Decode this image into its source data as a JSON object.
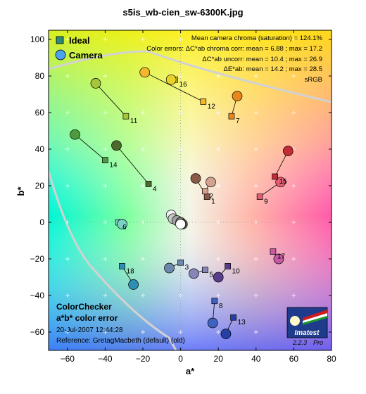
{
  "chart_data": {
    "type": "scatter",
    "title": "s5is_wb-cien_sw-6300K.jpg",
    "xlabel": "a*",
    "ylabel": "b*",
    "xlim": [
      -70,
      80
    ],
    "ylim": [
      -70,
      105
    ],
    "x_ticks": [
      -60,
      -40,
      -20,
      0,
      20,
      40,
      60,
      80
    ],
    "y_ticks": [
      -60,
      -40,
      -20,
      0,
      20,
      40,
      60,
      80,
      100
    ],
    "legend": {
      "placement": "top-left",
      "items": [
        {
          "label": "Ideal",
          "marker": "square"
        },
        {
          "label": "Camera",
          "marker": "circle"
        }
      ]
    },
    "stats": [
      "Mean camera chroma (saturation) = 124.1%",
      "Color errors:  ΔC*ab chroma corr:  mean = 6.88 ;  max = 17.2",
      "ΔC*ab uncorr:  mean = 10.4 ;  max = 26.9",
      "ΔE*ab:  mean = 14.2 ;  max = 28.5",
      "sRGB"
    ],
    "footer": {
      "title1": "ColorChecker",
      "title2": "a*b* color error",
      "date": "20-Jul-2007 12:44:28",
      "reference": "Reference:  GretagMacbeth (default) (old)"
    },
    "logo": {
      "name": "Imatest",
      "version": "2.2.3",
      "edition": "Pro"
    },
    "patches": [
      {
        "id": "1",
        "ideal": [
          14,
          14
        ],
        "camera": [
          8,
          24
        ],
        "color": "#8a5a44"
      },
      {
        "id": "2",
        "ideal": [
          13,
          17
        ],
        "camera": [
          16,
          22
        ],
        "color": "#d2a28e"
      },
      {
        "id": "3",
        "ideal": [
          0,
          -22
        ],
        "camera": [
          -6,
          -25
        ],
        "color": "#6e87ad"
      },
      {
        "id": "4",
        "ideal": [
          -17,
          21
        ],
        "camera": [
          -34,
          42
        ],
        "color": "#4e6b2e"
      },
      {
        "id": "5",
        "ideal": [
          13,
          -26
        ],
        "camera": [
          7,
          -28
        ],
        "color": "#8784b8"
      },
      {
        "id": "6",
        "ideal": [
          -33,
          0
        ],
        "camera": [
          -31,
          -1
        ],
        "color": "#78d2c0"
      },
      {
        "id": "7",
        "ideal": [
          27,
          58
        ],
        "camera": [
          30,
          69
        ],
        "color": "#e9871f"
      },
      {
        "id": "8",
        "ideal": [
          18,
          -43
        ],
        "camera": [
          17,
          -55
        ],
        "color": "#3f61c0"
      },
      {
        "id": "9",
        "ideal": [
          42,
          14
        ],
        "camera": [
          53,
          22
        ],
        "color": "#e05c74"
      },
      {
        "id": "10",
        "ideal": [
          25,
          -24
        ],
        "camera": [
          20,
          -30
        ],
        "color": "#5a3c8c"
      },
      {
        "id": "11",
        "ideal": [
          -29,
          58
        ],
        "camera": [
          -45,
          76
        ],
        "color": "#a6c43c"
      },
      {
        "id": "12",
        "ideal": [
          12,
          66
        ],
        "camera": [
          -19,
          82
        ],
        "color": "#f3b82a"
      },
      {
        "id": "13",
        "ideal": [
          28,
          -52
        ],
        "camera": [
          24,
          -61
        ],
        "color": "#2640a8"
      },
      {
        "id": "14",
        "ideal": [
          -40,
          34
        ],
        "camera": [
          -56,
          48
        ],
        "color": "#4e9a3e"
      },
      {
        "id": "15",
        "ideal": [
          50,
          25
        ],
        "camera": [
          57,
          39
        ],
        "color": "#c22a36"
      },
      {
        "id": "16",
        "ideal": [
          -3,
          78
        ],
        "camera": [
          -5,
          78
        ],
        "color": "#e8d22a"
      },
      {
        "id": "17",
        "ideal": [
          49,
          -16
        ],
        "camera": [
          52,
          -20
        ],
        "color": "#c65aa2"
      },
      {
        "id": "18",
        "ideal": [
          -31,
          -24
        ],
        "camera": [
          -25,
          -34
        ],
        "color": "#2e8fb6"
      },
      {
        "id": "19",
        "ideal": [
          0,
          0
        ],
        "camera": [
          -5,
          4
        ],
        "color": "#f2f2f2"
      },
      {
        "id": "20",
        "ideal": [
          0,
          0
        ],
        "camera": [
          -4,
          2
        ],
        "color": "#c8c8c8"
      },
      {
        "id": "21",
        "ideal": [
          0,
          0
        ],
        "camera": [
          -2,
          1
        ],
        "color": "#a0a0a0"
      },
      {
        "id": "22",
        "ideal": [
          0,
          0
        ],
        "camera": [
          0,
          0
        ],
        "color": "#787878"
      },
      {
        "id": "23",
        "ideal": [
          0,
          0
        ],
        "camera": [
          1,
          -1
        ],
        "color": "#555555"
      },
      {
        "id": "24",
        "ideal": [
          0,
          0
        ],
        "camera": [
          0,
          -1
        ],
        "color": "#ffffff"
      }
    ]
  }
}
